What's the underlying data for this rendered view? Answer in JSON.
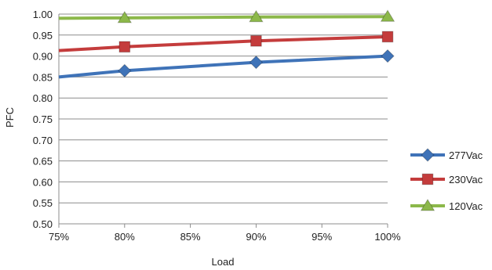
{
  "chart_data": {
    "type": "line",
    "xlabel": "Load",
    "ylabel": "PFC",
    "x_ticks": [
      "75%",
      "80%",
      "85%",
      "90%",
      "95%",
      "100%"
    ],
    "y_ticks": [
      "0.50",
      "0.55",
      "0.60",
      "0.65",
      "0.70",
      "0.75",
      "0.80",
      "0.85",
      "0.90",
      "0.95",
      "1.00"
    ],
    "xlim": [
      75,
      100
    ],
    "ylim": [
      0.5,
      1.0
    ],
    "grid": "horizontal",
    "legend_position": "right",
    "series": [
      {
        "name": "277Vac",
        "color": "#3f73b8",
        "marker": "diamond",
        "x": [
          75,
          80,
          90,
          100
        ],
        "y": [
          0.85,
          0.865,
          0.885,
          0.9
        ],
        "marker_points": [
          80,
          90,
          100
        ]
      },
      {
        "name": "230Vac",
        "color": "#c43c3c",
        "marker": "square",
        "x": [
          75,
          80,
          90,
          100
        ],
        "y": [
          0.913,
          0.922,
          0.936,
          0.946
        ],
        "marker_points": [
          80,
          90,
          100
        ]
      },
      {
        "name": "120Vac",
        "color": "#8cb84a",
        "marker": "triangle",
        "x": [
          75,
          80,
          90,
          100
        ],
        "y": [
          0.99,
          0.991,
          0.993,
          0.994
        ],
        "marker_points": [
          80,
          90,
          100
        ]
      }
    ]
  }
}
